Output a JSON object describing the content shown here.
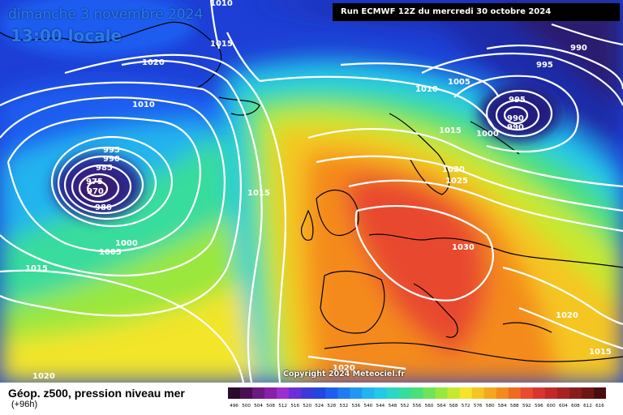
{
  "header": {
    "date": "dimanche 3 novembre 2024",
    "time": "13:00 locale",
    "run": "Run ECMWF 12Z du mercredi 30 octobre 2024"
  },
  "copyright": "Copyright 2024 Meteociel.fr",
  "footer": {
    "product": "Géop. z500, pression niveau mer",
    "lead": "(+96h)"
  },
  "colors": {
    "low_core": "#2b1f6e",
    "deep_blue": "#1d3fd6",
    "blue": "#1f7bf0",
    "cyan": "#22c8e8",
    "green": "#49e07a",
    "yellow": "#f2e52a",
    "orange": "#f48a1e",
    "red": "#e84a2e",
    "isobar": "#ffffff",
    "coast": "#000000"
  },
  "isobar_labels": [
    {
      "id": "1010-top",
      "text": "1010"
    },
    {
      "id": "1015-top",
      "text": "1015"
    },
    {
      "id": "1020-nw",
      "text": "1020"
    },
    {
      "id": "1010-w",
      "text": "1010"
    },
    {
      "id": "995-low",
      "text": "995"
    },
    {
      "id": "990-low",
      "text": "990"
    },
    {
      "id": "985-low",
      "text": "985"
    },
    {
      "id": "975-low",
      "text": "975"
    },
    {
      "id": "970-low",
      "text": "970"
    },
    {
      "id": "980-low",
      "text": "980"
    },
    {
      "id": "1000-low",
      "text": "1000"
    },
    {
      "id": "1005-low",
      "text": "1005"
    },
    {
      "id": "1015-sw",
      "text": "1015"
    },
    {
      "id": "1015-mid",
      "text": "1015"
    },
    {
      "id": "1010-n",
      "text": "1010"
    },
    {
      "id": "1005-n",
      "text": "1005"
    },
    {
      "id": "995-ne",
      "text": "995"
    },
    {
      "id": "990-ne",
      "text": "990"
    },
    {
      "id": "985-ne",
      "text": "985"
    },
    {
      "id": "990-ne2",
      "text": "990"
    },
    {
      "id": "995-ne2",
      "text": "995"
    },
    {
      "id": "990-tr",
      "text": "990"
    },
    {
      "id": "1015-nsea",
      "text": "1015"
    },
    {
      "id": "1000-ne",
      "text": "1000"
    },
    {
      "id": "1020-scan",
      "text": "1020"
    },
    {
      "id": "1025-scan",
      "text": "1025"
    },
    {
      "id": "1030-eu",
      "text": "1030"
    },
    {
      "id": "1020-e",
      "text": "1020"
    },
    {
      "id": "1015-se",
      "text": "1015"
    },
    {
      "id": "1020-bottom",
      "text": "1020"
    },
    {
      "id": "1020-bl",
      "text": "1020"
    }
  ],
  "colorbar": {
    "ticks": [
      "496",
      "500",
      "504",
      "508",
      "512",
      "516",
      "520",
      "524",
      "528",
      "532",
      "536",
      "540",
      "544",
      "548",
      "552",
      "556",
      "560",
      "564",
      "568",
      "572",
      "576",
      "580",
      "584",
      "588",
      "592",
      "596",
      "600",
      "604",
      "608",
      "612",
      "616"
    ],
    "colors": [
      "#2b0a2b",
      "#4a0f52",
      "#6b1a7e",
      "#8a1fa8",
      "#9b2ed0",
      "#6a2fd8",
      "#3b3ad8",
      "#2346e0",
      "#1f5df0",
      "#1f7bf0",
      "#2197f2",
      "#22b4ee",
      "#22c8e8",
      "#2ad6c8",
      "#38dc9c",
      "#49e07a",
      "#6ee45a",
      "#9ae73c",
      "#c6e92e",
      "#f2e52a",
      "#f5c622",
      "#f5a81e",
      "#f48a1e",
      "#f06a22",
      "#e84a2e",
      "#d9352e",
      "#c22a2a",
      "#a82222",
      "#8a1c1c",
      "#6e1616",
      "#4a0e0e"
    ]
  }
}
